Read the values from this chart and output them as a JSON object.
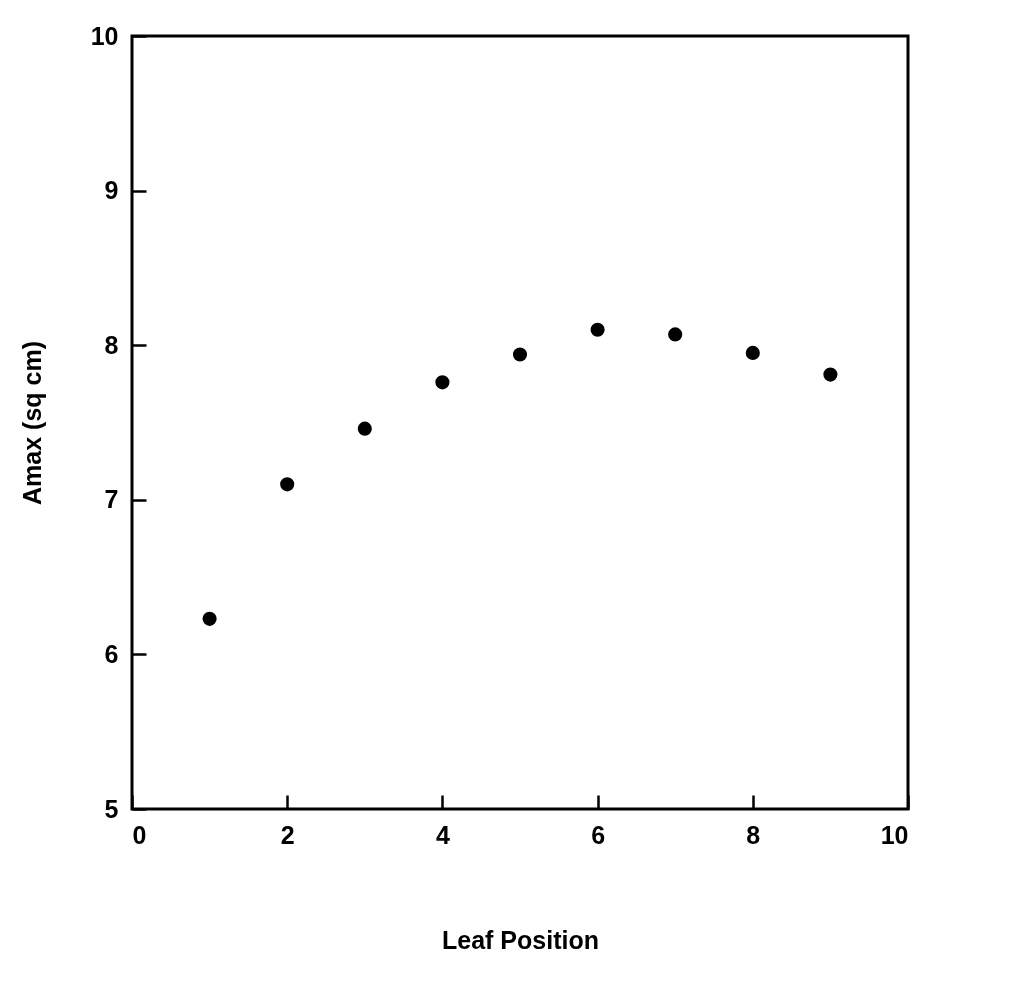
{
  "chart_data": {
    "type": "scatter",
    "xlabel": "Leaf Position",
    "ylabel": "Amax (sq cm)",
    "x": [
      1,
      2,
      3,
      4,
      5,
      6,
      7,
      8,
      9
    ],
    "series": [
      {
        "color": "#000000",
        "values": [
          6.23,
          7.1,
          7.46,
          7.76,
          7.94,
          8.1,
          8.07,
          7.95,
          7.81
        ]
      }
    ],
    "xlim": [
      0,
      10
    ],
    "xticks": [
      0,
      2,
      4,
      6,
      8,
      10
    ],
    "ylim": [
      5,
      10
    ],
    "yticks": [
      5,
      6,
      7,
      8,
      9,
      10
    ],
    "grid": false,
    "marker": "circle"
  }
}
